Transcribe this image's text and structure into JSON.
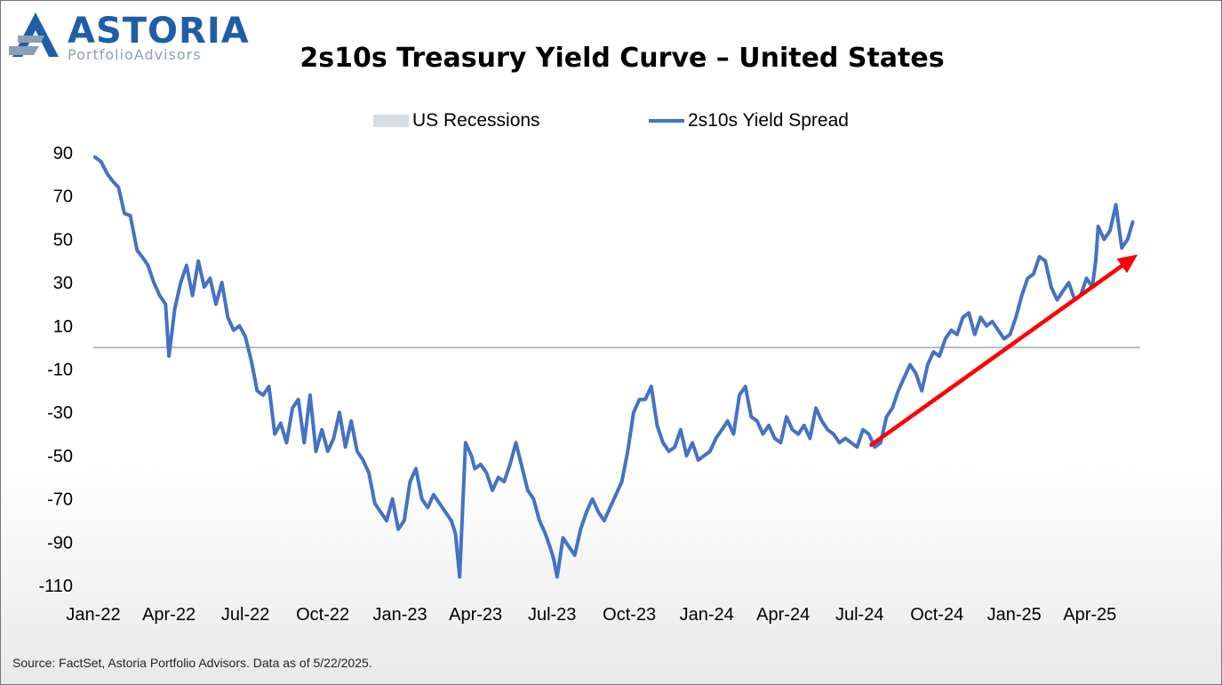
{
  "logo": {
    "word": "ASTORIA",
    "sub": "PortfolioAdvisors"
  },
  "source": "Source: FactSet, Astoria Portfolio Advisors. Data as of 5/22/2025.",
  "colors": {
    "line": "#4472c4",
    "recession": "#d6dce4",
    "arrow": "#ff0000",
    "logo": "#1e5ea8"
  },
  "chart_data": {
    "type": "line",
    "title": "2s10s Treasury Yield Curve – United States",
    "xlabel": "",
    "ylabel": "",
    "legend": [
      {
        "name": "US Recessions",
        "kind": "area"
      },
      {
        "name": "2s10s Yield Spread",
        "kind": "line"
      }
    ],
    "legend_position": "top",
    "grid": false,
    "zero_line": true,
    "ylim": [
      -110,
      90
    ],
    "yticks": [
      90,
      70,
      50,
      30,
      10,
      -10,
      -30,
      -50,
      -70,
      -90,
      -110
    ],
    "ytick_labels": [
      "90",
      "70",
      "50",
      "30",
      "10",
      "-10",
      "-30",
      "-50",
      "-70",
      "-90",
      "-110"
    ],
    "xlim": [
      "2022-01-01",
      "2025-05-31"
    ],
    "xticks": [
      "2022-01-01",
      "2022-04-01",
      "2022-07-01",
      "2022-10-01",
      "2023-01-01",
      "2023-04-01",
      "2023-07-01",
      "2023-10-01",
      "2024-01-01",
      "2024-04-01",
      "2024-07-01",
      "2024-10-01",
      "2025-01-01",
      "2025-04-01"
    ],
    "xtick_labels": [
      "Jan-22",
      "Apr-22",
      "Jul-22",
      "Oct-22",
      "Jan-23",
      "Apr-23",
      "Jul-23",
      "Oct-23",
      "Jan-24",
      "Apr-24",
      "Jul-24",
      "Oct-24",
      "Jan-25",
      "Apr-25"
    ],
    "series": [
      {
        "name": "2s10s Yield Spread",
        "x": [
          "2022-01-03",
          "2022-01-10",
          "2022-01-18",
          "2022-01-24",
          "2022-01-31",
          "2022-02-07",
          "2022-02-14",
          "2022-02-22",
          "2022-02-28",
          "2022-03-07",
          "2022-03-14",
          "2022-03-21",
          "2022-03-28",
          "2022-04-01",
          "2022-04-08",
          "2022-04-15",
          "2022-04-22",
          "2022-04-29",
          "2022-05-06",
          "2022-05-13",
          "2022-05-20",
          "2022-05-27",
          "2022-06-03",
          "2022-06-10",
          "2022-06-17",
          "2022-06-24",
          "2022-07-01",
          "2022-07-08",
          "2022-07-15",
          "2022-07-22",
          "2022-07-29",
          "2022-08-05",
          "2022-08-12",
          "2022-08-19",
          "2022-08-26",
          "2022-09-02",
          "2022-09-09",
          "2022-09-16",
          "2022-09-23",
          "2022-09-30",
          "2022-10-07",
          "2022-10-14",
          "2022-10-21",
          "2022-10-28",
          "2022-11-04",
          "2022-11-11",
          "2022-11-18",
          "2022-11-25",
          "2022-12-02",
          "2022-12-09",
          "2022-12-16",
          "2022-12-23",
          "2022-12-30",
          "2023-01-06",
          "2023-01-13",
          "2023-01-20",
          "2023-01-27",
          "2023-02-03",
          "2023-02-10",
          "2023-02-17",
          "2023-02-24",
          "2023-03-03",
          "2023-03-08",
          "2023-03-13",
          "2023-03-20",
          "2023-03-27",
          "2023-03-31",
          "2023-04-07",
          "2023-04-14",
          "2023-04-21",
          "2023-04-28",
          "2023-05-05",
          "2023-05-12",
          "2023-05-19",
          "2023-05-26",
          "2023-06-02",
          "2023-06-09",
          "2023-06-16",
          "2023-06-23",
          "2023-06-30",
          "2023-07-03",
          "2023-07-07",
          "2023-07-14",
          "2023-07-21",
          "2023-07-28",
          "2023-08-04",
          "2023-08-11",
          "2023-08-18",
          "2023-08-25",
          "2023-09-01",
          "2023-09-08",
          "2023-09-15",
          "2023-09-22",
          "2023-09-29",
          "2023-10-06",
          "2023-10-13",
          "2023-10-20",
          "2023-10-27",
          "2023-11-03",
          "2023-11-10",
          "2023-11-17",
          "2023-11-24",
          "2023-12-01",
          "2023-12-08",
          "2023-12-15",
          "2023-12-22",
          "2023-12-29",
          "2024-01-05",
          "2024-01-12",
          "2024-01-19",
          "2024-01-26",
          "2024-02-02",
          "2024-02-09",
          "2024-02-16",
          "2024-02-23",
          "2024-03-01",
          "2024-03-08",
          "2024-03-15",
          "2024-03-22",
          "2024-03-29",
          "2024-04-05",
          "2024-04-12",
          "2024-04-19",
          "2024-04-26",
          "2024-05-03",
          "2024-05-10",
          "2024-05-17",
          "2024-05-24",
          "2024-05-31",
          "2024-06-07",
          "2024-06-14",
          "2024-06-21",
          "2024-06-28",
          "2024-07-05",
          "2024-07-12",
          "2024-07-19",
          "2024-07-26",
          "2024-08-02",
          "2024-08-09",
          "2024-08-16",
          "2024-08-23",
          "2024-08-30",
          "2024-09-06",
          "2024-09-13",
          "2024-09-20",
          "2024-09-27",
          "2024-10-04",
          "2024-10-11",
          "2024-10-18",
          "2024-10-25",
          "2024-11-01",
          "2024-11-08",
          "2024-11-15",
          "2024-11-22",
          "2024-11-29",
          "2024-12-06",
          "2024-12-13",
          "2024-12-20",
          "2024-12-27",
          "2025-01-03",
          "2025-01-10",
          "2025-01-17",
          "2025-01-24",
          "2025-01-31",
          "2025-02-07",
          "2025-02-14",
          "2025-02-21",
          "2025-02-28",
          "2025-03-07",
          "2025-03-14",
          "2025-03-21",
          "2025-03-28",
          "2025-04-04",
          "2025-04-08",
          "2025-04-11",
          "2025-04-18",
          "2025-04-25",
          "2025-05-02",
          "2025-05-09",
          "2025-05-16",
          "2025-05-22"
        ],
        "y": [
          88,
          86,
          80,
          77,
          74,
          62,
          61,
          45,
          42,
          38,
          30,
          24,
          20,
          -4,
          18,
          30,
          38,
          24,
          40,
          28,
          32,
          20,
          30,
          14,
          8,
          10,
          5,
          -6,
          -20,
          -22,
          -18,
          -40,
          -35,
          -44,
          -28,
          -24,
          -44,
          -22,
          -48,
          -38,
          -48,
          -42,
          -30,
          -46,
          -34,
          -48,
          -52,
          -58,
          -72,
          -76,
          -80,
          -70,
          -84,
          -80,
          -62,
          -56,
          -70,
          -74,
          -68,
          -72,
          -76,
          -80,
          -86,
          -106,
          -44,
          -50,
          -56,
          -54,
          -58,
          -66,
          -60,
          -62,
          -54,
          -44,
          -55,
          -66,
          -70,
          -80,
          -86,
          -94,
          -98,
          -106,
          -88,
          -92,
          -96,
          -84,
          -76,
          -70,
          -76,
          -80,
          -74,
          -68,
          -62,
          -48,
          -30,
          -24,
          -24,
          -18,
          -36,
          -44,
          -48,
          -46,
          -38,
          -50,
          -44,
          -52,
          -50,
          -48,
          -42,
          -38,
          -34,
          -40,
          -22,
          -18,
          -32,
          -34,
          -40,
          -36,
          -42,
          -44,
          -32,
          -38,
          -40,
          -36,
          -42,
          -28,
          -34,
          -38,
          -40,
          -44,
          -42,
          -44,
          -46,
          -38,
          -40,
          -46,
          -44,
          -32,
          -28,
          -20,
          -14,
          -8,
          -12,
          -20,
          -8,
          -2,
          -4,
          4,
          8,
          6,
          14,
          16,
          6,
          14,
          10,
          12,
          8,
          4,
          6,
          14,
          24,
          32,
          34,
          42,
          40,
          28,
          22,
          26,
          30,
          22,
          24,
          32,
          28,
          40,
          56,
          50,
          54,
          66,
          46,
          50,
          58
        ]
      }
    ],
    "recessions": [],
    "annotations": [
      {
        "type": "arrow",
        "note": "red trend arrow pointing up and right",
        "from": {
          "x": "2024-07-15",
          "y": -45
        },
        "to": {
          "x": "2025-05-28",
          "y": 43
        }
      }
    ]
  }
}
